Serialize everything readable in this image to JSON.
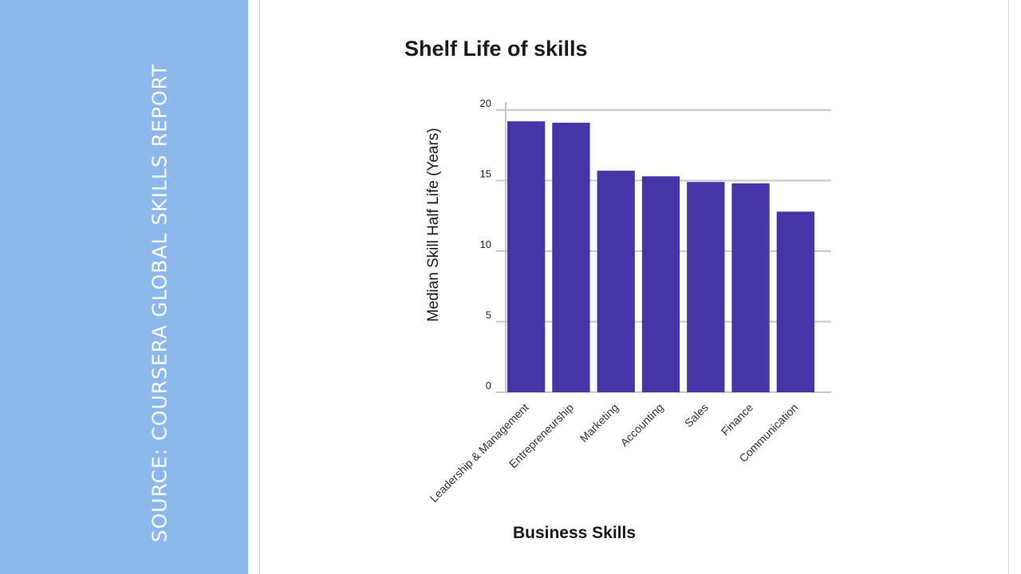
{
  "sidebar": {
    "source_text": "SOURCE: COURSERA GLOBAL SKILLS REPORT"
  },
  "chart_data": {
    "type": "bar",
    "title": "Shelf Life of skills",
    "xlabel": "Business Skills",
    "ylabel": "Median Skill Half Life (Years)",
    "categories": [
      "Leadership & Management",
      "Entrepreneurship",
      "Marketing",
      "Accounting",
      "Sales",
      "Finance",
      "Communication"
    ],
    "values": [
      19.2,
      19.1,
      15.7,
      15.3,
      14.9,
      14.8,
      12.8
    ],
    "ylim": [
      0,
      20
    ],
    "yticks": [
      0,
      5,
      10,
      15,
      20
    ],
    "grid": true,
    "bar_color": "#4535a6"
  }
}
